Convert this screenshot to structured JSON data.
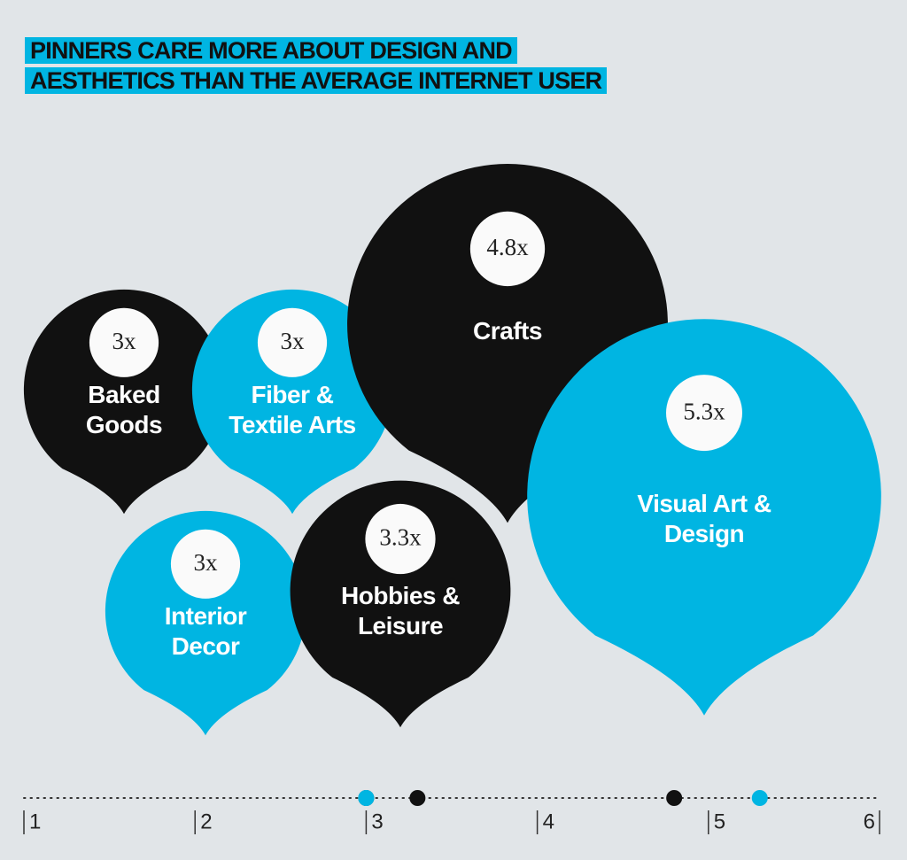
{
  "chart_data": {
    "type": "bubble",
    "title": "PINNERS CARE MORE ABOUT DESIGN AND AESTHETICS THAN THE AVERAGE INTERNET USER",
    "categories": [
      "Baked Goods",
      "Fiber & Textile Arts",
      "Crafts",
      "Visual Art & Design",
      "Interior Decor",
      "Hobbies & Leisure"
    ],
    "values": [
      3,
      3,
      4.8,
      5.3,
      3,
      3.3
    ],
    "value_labels": [
      "3x",
      "3x",
      "4.8x",
      "5.3x",
      "3x",
      "3.3x"
    ],
    "colors": [
      "#111111",
      "#00b5e2",
      "#111111",
      "#00b5e2",
      "#00b5e2",
      "#111111"
    ],
    "xlim": [
      1,
      6
    ],
    "xticks": [
      1,
      2,
      3,
      4,
      5,
      6
    ]
  }
}
